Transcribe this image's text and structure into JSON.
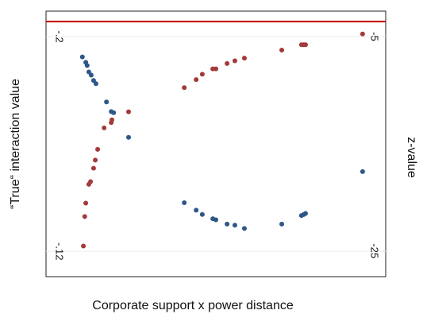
{
  "chart_data": {
    "type": "scatter",
    "xlabel": "Corporate support x power distance",
    "ylabel": "“True“ interaction value",
    "y2label": "z-value",
    "xlim": [
      0,
      100
    ],
    "ylim": [
      -0.1106,
      -0.2095
    ],
    "yticks": [
      {
        "value": -0.2,
        "label": "-.2"
      },
      {
        "value": -0.12,
        "label": "-.12"
      }
    ],
    "y2lim": [
      -27.4,
      -2.63
    ],
    "y2ticks": [
      -5,
      -25
    ],
    "grid": true,
    "reference_line": {
      "axis": "y2",
      "value": -3.6,
      "color": "#c00000"
    },
    "series": [
      {
        "color": "#a33a3a",
        "x": [
          11.0,
          11.4,
          11.7,
          12.6,
          13.1,
          14.0,
          14.5,
          15.2,
          17.1,
          19.2,
          19.4,
          24.3,
          40.7,
          44.2,
          46.0,
          49.1,
          50.0,
          53.3,
          55.6,
          58.4,
          69.4,
          75.2,
          75.9,
          76.4,
          93.2
        ],
        "values": [
          -0.122,
          -0.133,
          -0.138,
          -0.145,
          -0.146,
          -0.151,
          -0.154,
          -0.158,
          -0.166,
          -0.168,
          -0.169,
          -0.172,
          -0.181,
          -0.184,
          -0.186,
          -0.188,
          -0.188,
          -0.19,
          -0.191,
          -0.192,
          -0.195,
          -0.197,
          -0.197,
          -0.197,
          -0.201
        ]
      },
      {
        "color": "#2d5788",
        "axis": "y2",
        "x": [
          10.7,
          11.7,
          12.1,
          12.6,
          13.3,
          14.0,
          14.7,
          17.8,
          19.2,
          19.9,
          24.3,
          40.7,
          44.2,
          46.0,
          49.1,
          50.0,
          53.3,
          55.6,
          58.4,
          69.4,
          75.2,
          75.9,
          76.4,
          93.2
        ],
        "values": [
          -6.9,
          -7.4,
          -7.7,
          -8.3,
          -8.6,
          -9.1,
          -9.4,
          -11.1,
          -12.0,
          -12.1,
          -14.4,
          -20.5,
          -21.2,
          -21.6,
          -22.0,
          -22.1,
          -22.5,
          -22.6,
          -22.9,
          -22.5,
          -21.7,
          -21.6,
          -21.5,
          -17.6
        ]
      }
    ]
  }
}
